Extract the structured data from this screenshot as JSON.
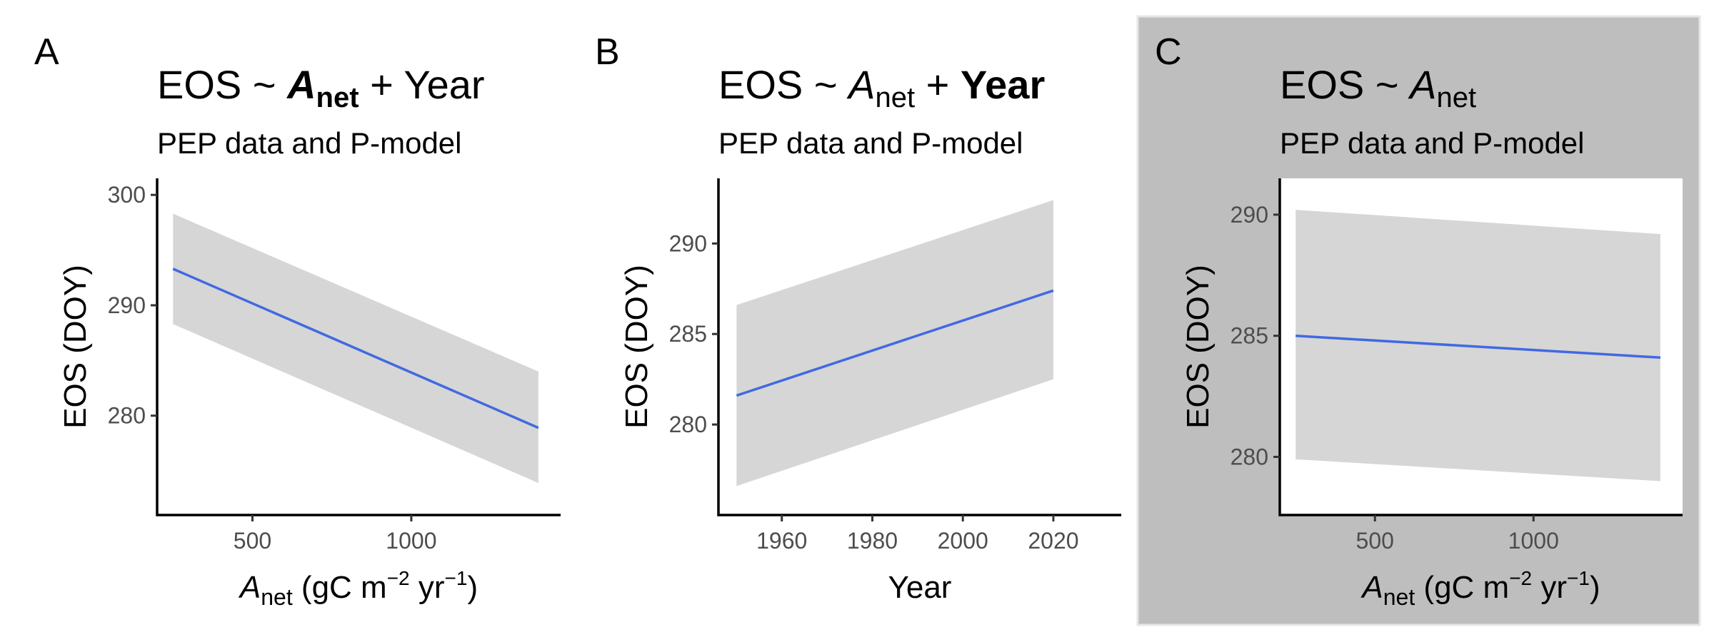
{
  "colors": {
    "line": "#4169e1",
    "ribbon": "#d6d6d6",
    "highlight_bg": "#bebebe",
    "highlight_border": "#e6e6e6"
  },
  "chart_data": [
    {
      "type": "line",
      "panel_label": "A",
      "title": {
        "pre": "EOS ~ ",
        "main": "A",
        "sub": "net",
        "post": " + Year",
        "bold": "A"
      },
      "subtitle": "PEP data and P-model",
      "xlabel": {
        "main": "A",
        "sub": "net",
        "post": " (gC m",
        "sup1": "−2",
        "mid": " yr",
        "sup2": "−1",
        "end": ")"
      },
      "ylabel": "EOS (DOY)",
      "xlim": [
        200,
        1470
      ],
      "ylim": [
        271,
        301.5
      ],
      "xticks": [
        500,
        1000
      ],
      "yticks": [
        280,
        290,
        300
      ],
      "series": [
        {
          "x": [
            250,
            1400
          ],
          "y": [
            293.3,
            278.9
          ],
          "lower": [
            288.3,
            273.9
          ],
          "upper": [
            298.3,
            284.0
          ]
        }
      ],
      "highlighted": false
    },
    {
      "type": "line",
      "panel_label": "B",
      "title": {
        "pre": "EOS ~ ",
        "main": "A",
        "sub": "net",
        "post": " + Year",
        "bold": "Year"
      },
      "subtitle": "PEP data and P-model",
      "xlabel": {
        "main": "Year"
      },
      "ylabel": "EOS (DOY)",
      "xlim": [
        1946,
        2035
      ],
      "ylim": [
        275,
        293.6
      ],
      "xticks": [
        1960,
        1980,
        2000,
        2020
      ],
      "yticks": [
        280,
        285,
        290
      ],
      "series": [
        {
          "x": [
            1950,
            2020
          ],
          "y": [
            281.6,
            287.4
          ],
          "lower": [
            276.6,
            282.5
          ],
          "upper": [
            286.6,
            292.4
          ]
        }
      ],
      "highlighted": false
    },
    {
      "type": "line",
      "panel_label": "C",
      "title": {
        "pre": "EOS ~ ",
        "main": "A",
        "sub": "net",
        "post": "",
        "bold": ""
      },
      "subtitle": "PEP data and P-model",
      "xlabel": {
        "main": "A",
        "sub": "net",
        "post": " (gC m",
        "sup1": "−2",
        "mid": " yr",
        "sup2": "−1",
        "end": ")"
      },
      "ylabel": "EOS (DOY)",
      "xlim": [
        200,
        1470
      ],
      "ylim": [
        277.6,
        291.5
      ],
      "xticks": [
        500,
        1000
      ],
      "yticks": [
        280,
        285,
        290
      ],
      "series": [
        {
          "x": [
            250,
            1400
          ],
          "y": [
            285.0,
            284.1
          ],
          "lower": [
            279.9,
            279.0
          ],
          "upper": [
            290.2,
            289.2
          ]
        }
      ],
      "highlighted": true
    }
  ]
}
